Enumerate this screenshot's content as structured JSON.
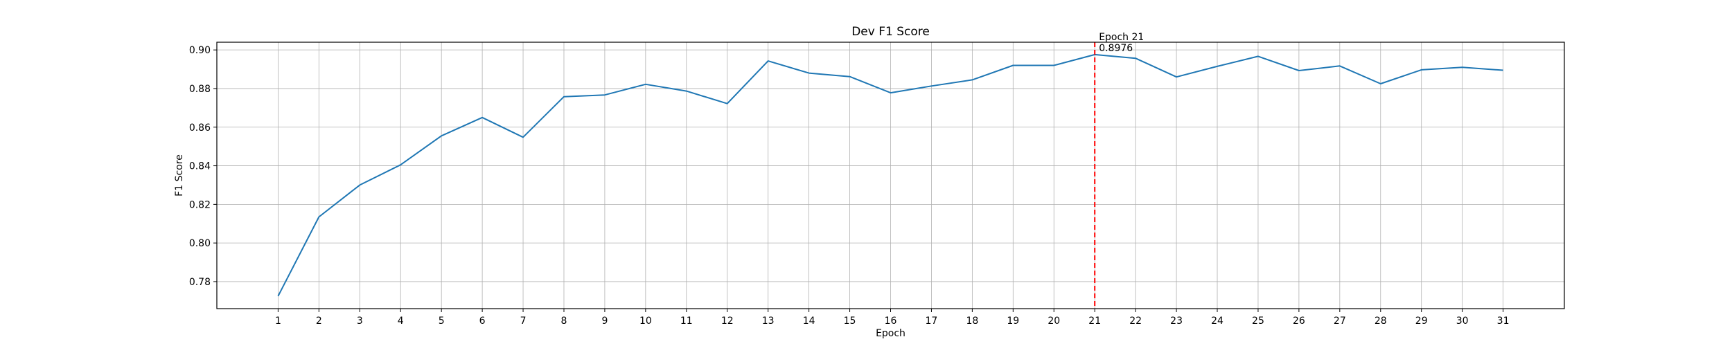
{
  "chart_data": {
    "type": "line",
    "title": "Dev F1 Score",
    "xlabel": "Epoch",
    "ylabel": "F1 Score",
    "grid": true,
    "xlim": [
      -0.5,
      32.5
    ],
    "ylim": [
      0.766,
      0.904
    ],
    "x": [
      1,
      2,
      3,
      4,
      5,
      6,
      7,
      8,
      9,
      10,
      11,
      12,
      13,
      14,
      15,
      16,
      17,
      18,
      19,
      20,
      21,
      22,
      23,
      24,
      25,
      26,
      27,
      28,
      29,
      30,
      31
    ],
    "xticks": [
      "1",
      "2",
      "3",
      "4",
      "5",
      "6",
      "7",
      "8",
      "9",
      "10",
      "11",
      "12",
      "13",
      "14",
      "15",
      "16",
      "17",
      "18",
      "19",
      "20",
      "21",
      "22",
      "23",
      "24",
      "25",
      "26",
      "27",
      "28",
      "29",
      "30",
      "31"
    ],
    "yticks": [
      "0.78",
      "0.80",
      "0.82",
      "0.84",
      "0.86",
      "0.88",
      "0.90"
    ],
    "series": [
      {
        "color": "#1f77b4",
        "values": [
          0.7725,
          0.8135,
          0.83,
          0.8405,
          0.8555,
          0.865,
          0.8548,
          0.8758,
          0.8767,
          0.8822,
          0.8787,
          0.8722,
          0.8943,
          0.888,
          0.8862,
          0.8778,
          0.8813,
          0.8845,
          0.892,
          0.892,
          0.8976,
          0.8957,
          0.886,
          0.8915,
          0.8967,
          0.8893,
          0.8917,
          0.8825,
          0.8897,
          0.891,
          0.8895
        ]
      }
    ],
    "marker_line": {
      "x": 21,
      "color": "#ff0000",
      "style": "dashed"
    },
    "annotation": {
      "line1": "Epoch 21",
      "line2": "0.8976"
    }
  }
}
